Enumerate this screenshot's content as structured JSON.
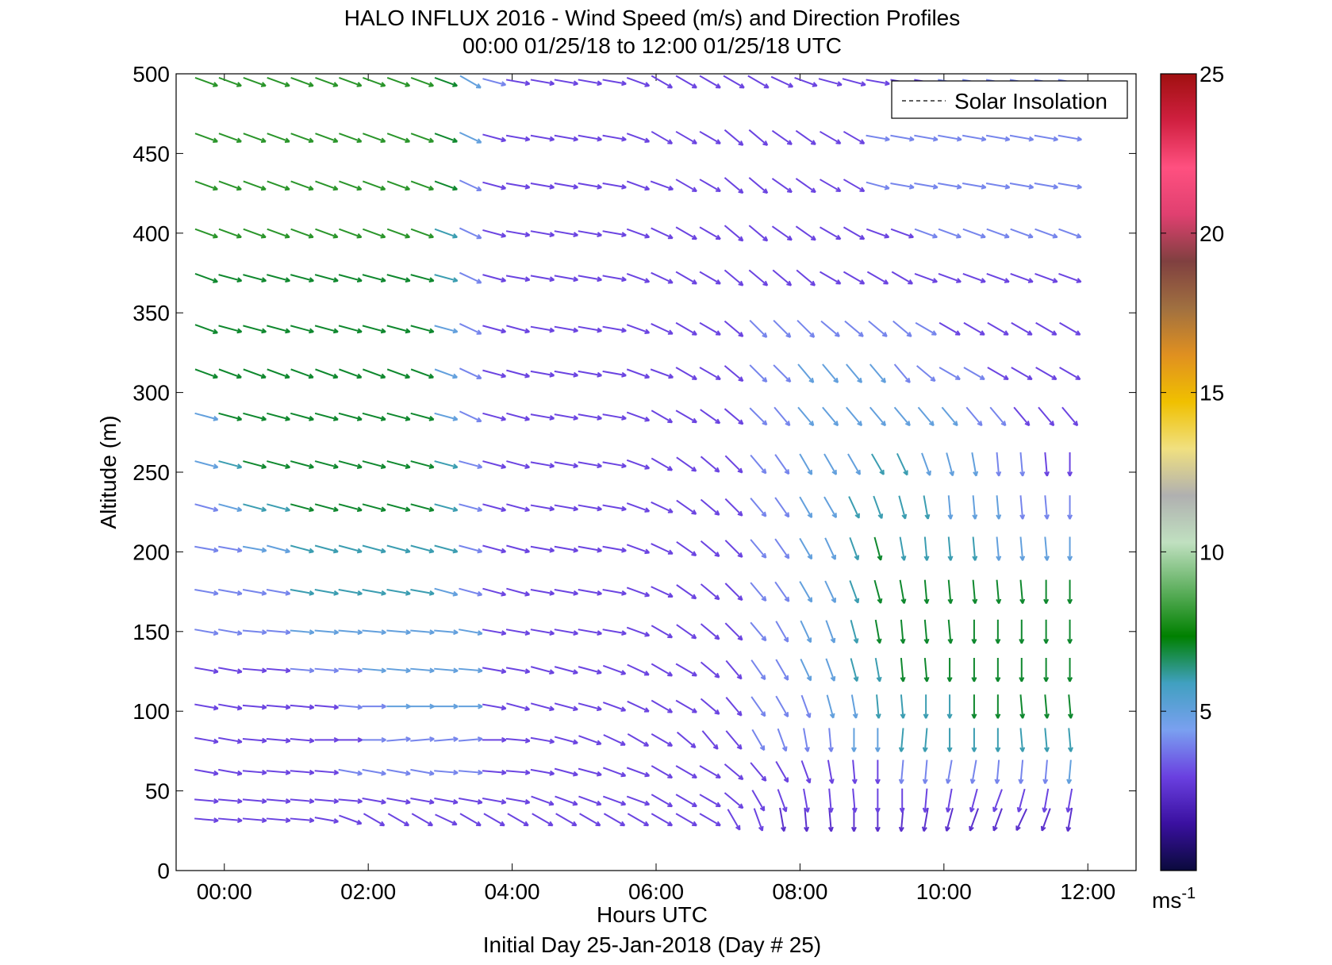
{
  "chart_data": {
    "type": "quiver",
    "title": "HALO INFLUX 2016 - Wind Speed (m/s) and Direction Profiles",
    "subtitle": "00:00 01/25/18 to 12:00 01/25/18  UTC",
    "xlabel": "Hours UTC",
    "xlabel2": "Initial Day 25-Jan-2018 (Day # 25)",
    "ylabel": "Altitude (m)",
    "x_ticks": [
      "00:00",
      "02:00",
      "04:00",
      "06:00",
      "08:00",
      "10:00",
      "12:00"
    ],
    "x_tick_hours": [
      0,
      2,
      4,
      6,
      8,
      10,
      12
    ],
    "xlim_hours": [
      -0.67,
      12.67
    ],
    "y_ticks": [
      "0",
      "50",
      "100",
      "150",
      "200",
      "250",
      "300",
      "350",
      "400",
      "450",
      "500"
    ],
    "ylim": [
      0,
      500
    ],
    "legend": {
      "label": "Solar Insolation",
      "placement": "top-right"
    },
    "colorbar": {
      "ticks": [
        "5",
        "10",
        "15",
        "20",
        "25"
      ],
      "range": [
        0,
        25
      ],
      "unit_label": "ms",
      "unit_exponent": "-1",
      "stops": [
        "#0a0a3c",
        "#3a10a0",
        "#6a40e0",
        "#7aa0f0",
        "#40a0c0",
        "#008000",
        "#60b060",
        "#c0e0c0",
        "#b0b0b0",
        "#f0e080",
        "#f0c000",
        "#e09020",
        "#a07040",
        "#804040",
        "#e04070",
        "#ff5080",
        "#d02040",
        "#a01010"
      ]
    },
    "series": [
      {
        "rows_description_omitted": true
      }
    ],
    "times_hours": [
      -0.25,
      0.08,
      0.42,
      0.75,
      1.08,
      1.42,
      1.75,
      2.08,
      2.42,
      2.75,
      3.08,
      3.42,
      3.75,
      4.08,
      4.42,
      4.75,
      5.08,
      5.42,
      5.75,
      6.08,
      6.42,
      6.75,
      7.08,
      7.42,
      7.75,
      8.08,
      8.42,
      8.75,
      9.08,
      9.42,
      9.75,
      10.08,
      10.42,
      10.75,
      11.08,
      11.42,
      11.75
    ],
    "altitudes_m": [
      32,
      44,
      62,
      82,
      103,
      126,
      150,
      175,
      202,
      228,
      255,
      285,
      312,
      340,
      372,
      400,
      430,
      460,
      495
    ],
    "wind_direction_deg": [
      [
        275,
        275,
        275,
        275,
        275,
        280,
        290,
        300,
        300,
        300,
        295,
        300,
        300,
        300,
        300,
        300,
        300,
        300,
        300,
        300,
        300,
        300,
        330,
        340,
        350,
        355,
        355,
        0,
        0,
        5,
        10,
        15,
        20,
        20,
        25,
        20,
        10
      ],
      [
        275,
        275,
        275,
        275,
        275,
        275,
        275,
        280,
        280,
        280,
        280,
        280,
        280,
        280,
        290,
        290,
        290,
        290,
        290,
        300,
        300,
        300,
        310,
        330,
        340,
        350,
        355,
        355,
        0,
        0,
        5,
        10,
        15,
        20,
        15,
        10,
        10
      ],
      [
        280,
        280,
        275,
        275,
        275,
        275,
        280,
        280,
        280,
        280,
        275,
        275,
        275,
        275,
        280,
        285,
        285,
        290,
        290,
        300,
        300,
        300,
        310,
        320,
        330,
        340,
        350,
        355,
        0,
        5,
        5,
        10,
        10,
        5,
        5,
        5,
        5
      ],
      [
        280,
        280,
        275,
        275,
        275,
        270,
        270,
        270,
        265,
        265,
        265,
        265,
        270,
        275,
        280,
        285,
        290,
        295,
        300,
        300,
        310,
        320,
        320,
        330,
        340,
        350,
        355,
        0,
        0,
        5,
        5,
        0,
        0,
        0,
        355,
        355,
        355
      ],
      [
        280,
        280,
        275,
        275,
        275,
        275,
        275,
        270,
        270,
        270,
        270,
        270,
        280,
        285,
        285,
        285,
        285,
        290,
        295,
        300,
        300,
        310,
        320,
        325,
        330,
        340,
        345,
        350,
        355,
        355,
        0,
        0,
        0,
        0,
        355,
        355,
        355
      ],
      [
        280,
        280,
        275,
        275,
        275,
        275,
        275,
        275,
        275,
        275,
        275,
        275,
        280,
        280,
        285,
        285,
        285,
        290,
        295,
        300,
        300,
        310,
        320,
        325,
        330,
        335,
        340,
        345,
        350,
        355,
        355,
        0,
        0,
        0,
        0,
        0,
        0
      ],
      [
        280,
        280,
        275,
        275,
        275,
        275,
        275,
        275,
        275,
        275,
        275,
        280,
        280,
        280,
        280,
        280,
        280,
        280,
        290,
        300,
        305,
        310,
        315,
        320,
        330,
        335,
        340,
        345,
        350,
        355,
        355,
        355,
        0,
        0,
        0,
        0,
        0
      ],
      [
        280,
        280,
        280,
        280,
        280,
        280,
        280,
        280,
        280,
        280,
        285,
        285,
        285,
        285,
        280,
        280,
        280,
        280,
        290,
        295,
        305,
        310,
        315,
        320,
        325,
        330,
        335,
        340,
        345,
        350,
        355,
        355,
        355,
        355,
        355,
        0,
        0
      ],
      [
        280,
        280,
        280,
        285,
        285,
        285,
        285,
        285,
        285,
        285,
        285,
        285,
        285,
        285,
        280,
        280,
        280,
        280,
        290,
        295,
        305,
        310,
        315,
        320,
        325,
        330,
        335,
        340,
        345,
        350,
        355,
        355,
        355,
        355,
        355,
        355,
        0
      ],
      [
        285,
        285,
        285,
        285,
        285,
        285,
        285,
        285,
        285,
        285,
        285,
        285,
        285,
        285,
        280,
        280,
        280,
        280,
        290,
        295,
        305,
        310,
        315,
        320,
        325,
        330,
        330,
        335,
        340,
        345,
        350,
        355,
        355,
        355,
        355,
        355,
        0
      ],
      [
        285,
        285,
        285,
        285,
        285,
        285,
        285,
        285,
        285,
        285,
        285,
        285,
        285,
        285,
        280,
        280,
        280,
        280,
        290,
        300,
        305,
        310,
        315,
        320,
        325,
        330,
        330,
        330,
        330,
        335,
        340,
        345,
        350,
        355,
        355,
        355,
        0
      ],
      [
        285,
        285,
        285,
        285,
        285,
        285,
        285,
        285,
        285,
        285,
        285,
        295,
        285,
        285,
        280,
        280,
        280,
        280,
        290,
        300,
        300,
        305,
        310,
        315,
        320,
        320,
        320,
        320,
        320,
        320,
        320,
        320,
        320,
        320,
        320,
        320,
        320
      ],
      [
        290,
        290,
        290,
        290,
        290,
        290,
        290,
        290,
        290,
        290,
        290,
        295,
        285,
        285,
        280,
        280,
        280,
        280,
        290,
        290,
        300,
        300,
        310,
        315,
        315,
        320,
        320,
        320,
        320,
        320,
        310,
        300,
        300,
        300,
        300,
        300,
        300
      ],
      [
        290,
        285,
        285,
        285,
        285,
        285,
        285,
        285,
        285,
        285,
        285,
        295,
        285,
        285,
        280,
        280,
        280,
        280,
        290,
        295,
        300,
        300,
        310,
        315,
        315,
        315,
        310,
        310,
        310,
        310,
        300,
        300,
        300,
        300,
        300,
        300,
        300
      ],
      [
        290,
        285,
        285,
        285,
        285,
        285,
        285,
        285,
        285,
        285,
        285,
        295,
        285,
        280,
        280,
        280,
        280,
        280,
        290,
        295,
        300,
        300,
        310,
        310,
        310,
        310,
        300,
        300,
        300,
        300,
        290,
        290,
        290,
        290,
        290,
        290,
        290
      ],
      [
        290,
        290,
        290,
        290,
        290,
        290,
        290,
        290,
        290,
        290,
        290,
        295,
        285,
        280,
        280,
        280,
        280,
        280,
        290,
        295,
        300,
        300,
        310,
        310,
        305,
        305,
        300,
        300,
        290,
        290,
        290,
        290,
        290,
        290,
        290,
        290,
        290
      ],
      [
        290,
        290,
        290,
        290,
        290,
        290,
        290,
        290,
        290,
        290,
        290,
        295,
        285,
        280,
        280,
        280,
        280,
        280,
        290,
        290,
        300,
        300,
        310,
        310,
        305,
        305,
        300,
        300,
        285,
        280,
        280,
        280,
        280,
        280,
        280,
        280,
        280
      ],
      [
        290,
        290,
        290,
        290,
        290,
        290,
        290,
        290,
        290,
        290,
        290,
        295,
        285,
        280,
        280,
        280,
        280,
        280,
        290,
        300,
        300,
        300,
        310,
        310,
        305,
        305,
        300,
        300,
        280,
        280,
        280,
        280,
        280,
        280,
        280,
        280,
        280
      ],
      [
        290,
        290,
        290,
        290,
        290,
        290,
        290,
        290,
        290,
        290,
        290,
        300,
        285,
        280,
        280,
        280,
        280,
        280,
        290,
        300,
        300,
        300,
        300,
        300,
        295,
        290,
        285,
        285,
        280,
        280,
        280,
        280,
        280,
        280,
        280,
        280,
        280
      ]
    ],
    "wind_speed_ms": [
      [
        3,
        3,
        3,
        3,
        3,
        3,
        3,
        3,
        3,
        3,
        3,
        3,
        3,
        3,
        3,
        3,
        3,
        3,
        3,
        3,
        3,
        3,
        3,
        3,
        2.5,
        2.5,
        2.5,
        2.5,
        2.5,
        2.5,
        2.5,
        2.5,
        2.5,
        2.5,
        2.5,
        2.5,
        2.5
      ],
      [
        3,
        3,
        3,
        3,
        3,
        3,
        3,
        3,
        3,
        3,
        3,
        3,
        3,
        3,
        3,
        3,
        3,
        3,
        3,
        3,
        3,
        3,
        3,
        3,
        3,
        3,
        3,
        3,
        3,
        3,
        3,
        3,
        3,
        3,
        3,
        3,
        3
      ],
      [
        3,
        3,
        3,
        3,
        3,
        3,
        4,
        4,
        4,
        4,
        4,
        4,
        3,
        3,
        3,
        3,
        3,
        3,
        3,
        3,
        3,
        3,
        3,
        3,
        3,
        3,
        3,
        3,
        3,
        4,
        4,
        4,
        4,
        4,
        4,
        4,
        5
      ],
      [
        3,
        3,
        3,
        3,
        3,
        3,
        3,
        4,
        4,
        4,
        4,
        4,
        3,
        3,
        3,
        3,
        3,
        3,
        3,
        3,
        3,
        3,
        3,
        4,
        4,
        4,
        4,
        5,
        5,
        6,
        6,
        6,
        6,
        6,
        6,
        6,
        6
      ],
      [
        3,
        3,
        3,
        3,
        3,
        3,
        4,
        4,
        5,
        5,
        5,
        5,
        3,
        3,
        3,
        3,
        3,
        3,
        3,
        3,
        3,
        3,
        3,
        4,
        4,
        4,
        5,
        5,
        6,
        6,
        6,
        6,
        7,
        7,
        7,
        7,
        7
      ],
      [
        3,
        3,
        3,
        3,
        4,
        4,
        4,
        5,
        5,
        5,
        5,
        5,
        3,
        3,
        3,
        3,
        3,
        3,
        3,
        3,
        3,
        3,
        3,
        4,
        4,
        5,
        5,
        6,
        6,
        7,
        7,
        7,
        7,
        7,
        7,
        7,
        7
      ],
      [
        4,
        4,
        4,
        4,
        5,
        5,
        5,
        5,
        5,
        5,
        5,
        5,
        3,
        3,
        3,
        3,
        3,
        3,
        3,
        3,
        3,
        3,
        3,
        4,
        4,
        5,
        5,
        6,
        7,
        7,
        7,
        7,
        7,
        7,
        7,
        7,
        7
      ],
      [
        4,
        4,
        4,
        4,
        6,
        6,
        6,
        6,
        6,
        6,
        5,
        4,
        3,
        3,
        3,
        3,
        3,
        3,
        3,
        3,
        3,
        3,
        3,
        4,
        4,
        5,
        5,
        6,
        7,
        7,
        7,
        7,
        7,
        7,
        7,
        7,
        7
      ],
      [
        4,
        4,
        5,
        5,
        6,
        6,
        6,
        6,
        6,
        6,
        6,
        4,
        3,
        3,
        3,
        3,
        3,
        3,
        3,
        3,
        3,
        3,
        3,
        4,
        4,
        5,
        5,
        6,
        7,
        6,
        6,
        6,
        6,
        5,
        5,
        5,
        5
      ],
      [
        4,
        5,
        6,
        6,
        7,
        7,
        7,
        7,
        7,
        7,
        6,
        4,
        3,
        3,
        3,
        3,
        3,
        3,
        3,
        3,
        3,
        3,
        3,
        4,
        4,
        5,
        5,
        6,
        6,
        6,
        6,
        5,
        5,
        5,
        4,
        4,
        4
      ],
      [
        5,
        6,
        7,
        7,
        7,
        7,
        7,
        7,
        7,
        7,
        6,
        4,
        3,
        3,
        3,
        3,
        3,
        3,
        3,
        3,
        3,
        3,
        3,
        4,
        4,
        5,
        5,
        5,
        6,
        6,
        5,
        5,
        5,
        4,
        4,
        3,
        3
      ],
      [
        5,
        7,
        7,
        7,
        7,
        7,
        7,
        7,
        7,
        7,
        5,
        4,
        3,
        3,
        3,
        3,
        3,
        3,
        3,
        3,
        3,
        3,
        3,
        4,
        4,
        5,
        5,
        5,
        5,
        5,
        5,
        5,
        4,
        4,
        3,
        3,
        3
      ],
      [
        7,
        7,
        7,
        7,
        7,
        7,
        7,
        7,
        7,
        7,
        5,
        4,
        3,
        3,
        3,
        3,
        3,
        3,
        3,
        3,
        3,
        3,
        3,
        4,
        4,
        5,
        5,
        5,
        5,
        4,
        4,
        4,
        4,
        3,
        3,
        3,
        3
      ],
      [
        7,
        7,
        7,
        7,
        7,
        7,
        7,
        7,
        7,
        7,
        5,
        4,
        3,
        3,
        3,
        3,
        3,
        3,
        3,
        3,
        3,
        3,
        3,
        4,
        4,
        4,
        4,
        4,
        4,
        4,
        4,
        3,
        3,
        3,
        3,
        3,
        3
      ],
      [
        7,
        7,
        7,
        7,
        7,
        7,
        7,
        7,
        7,
        7,
        6,
        4,
        3,
        3,
        3,
        3,
        3,
        3,
        3,
        3,
        3,
        3,
        3,
        3,
        3,
        3,
        3,
        3,
        3,
        3,
        3,
        3,
        3,
        3,
        3,
        3,
        3
      ],
      [
        8,
        8,
        8,
        8,
        8,
        8,
        8,
        8,
        8,
        8,
        6,
        4,
        3,
        3,
        3,
        3,
        3,
        3,
        3,
        3,
        3,
        3,
        3,
        3,
        3,
        3,
        3,
        3,
        3,
        3,
        4,
        4,
        4,
        4,
        4,
        4,
        4
      ],
      [
        8,
        8,
        8,
        8,
        8,
        8,
        8,
        8,
        8,
        8,
        7,
        4,
        3,
        3,
        3,
        3,
        3,
        3,
        3,
        3,
        3,
        3,
        3,
        3,
        3,
        3,
        3,
        3,
        4,
        4,
        4,
        4,
        4,
        4,
        4,
        4,
        4
      ],
      [
        8,
        8,
        8,
        8,
        8,
        8,
        8,
        8,
        8,
        8,
        7,
        5,
        3,
        3,
        3,
        3,
        3,
        3,
        3,
        3,
        3,
        3,
        3,
        3,
        3,
        3,
        3,
        3,
        4,
        4,
        4,
        4,
        4,
        4,
        4,
        4,
        4
      ],
      [
        8,
        8,
        8,
        8,
        8,
        8,
        8,
        8,
        8,
        8,
        7,
        5,
        4,
        3,
        3,
        3,
        3,
        3,
        3,
        3,
        3,
        3,
        3,
        3,
        3,
        3,
        3,
        3,
        3,
        3,
        3,
        4,
        4,
        4,
        4,
        4,
        4
      ]
    ]
  }
}
